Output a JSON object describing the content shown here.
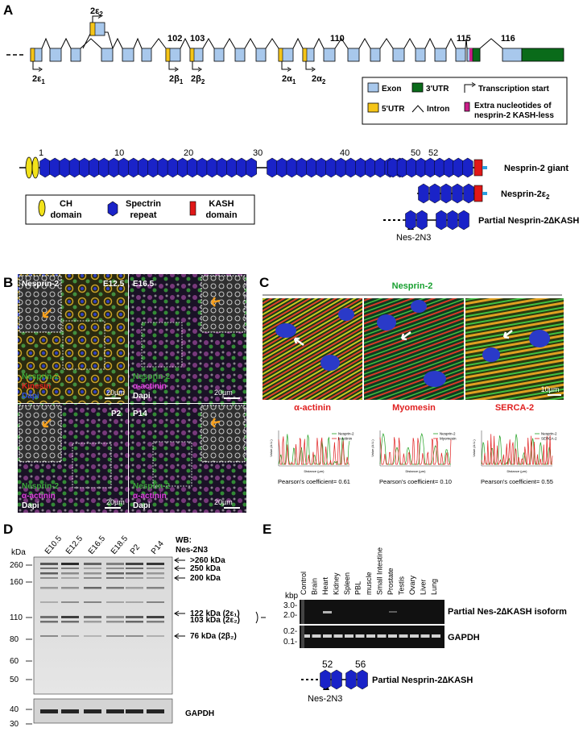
{
  "panels": {
    "A": "A",
    "B": "B",
    "C": "C",
    "D": "D",
    "E": "E"
  },
  "gene": {
    "exon_numbers": [
      "102",
      "103",
      "110",
      "115",
      "116"
    ],
    "start_labels": {
      "e1": {
        "base": "2ε",
        "sub": "1"
      },
      "e2": {
        "base": "2ε",
        "sub": "2"
      },
      "b1": {
        "base": "2β",
        "sub": "1"
      },
      "b2": {
        "base": "2β",
        "sub": "2"
      },
      "a1": {
        "base": "2α",
        "sub": "1"
      },
      "a2": {
        "base": "2α",
        "sub": "2"
      }
    },
    "legend": {
      "exon": "Exon",
      "utr3": "3'UTR",
      "tss": "Transcription start",
      "utr5": "5'UTR",
      "intron": "Intron",
      "extra_line1": "Extra nucleotides of",
      "extra_line2": "nesprin-2 KASH-less"
    }
  },
  "protein": {
    "repeat_numbers": [
      "1",
      "10",
      "20",
      "30",
      "40",
      "50",
      "52"
    ],
    "giant": "Nesprin-2 giant",
    "e2": {
      "base": "Nesprin-2ε",
      "sub": "2"
    },
    "partial": "Partial Nesprin-2∆KASH",
    "antibody": "Nes-2N3",
    "legend": {
      "ch_line1": "CH",
      "ch_line2": "domain",
      "spectrin_line1": "Spectrin",
      "spectrin_line2": "repeat",
      "kash_line1": "KASH",
      "kash_line2": "domain"
    }
  },
  "panelB": {
    "tiles": [
      {
        "stage": "E12.5",
        "inset": "Nesprin-2",
        "l1": "Nesprin-2",
        "l2": "Kinesin",
        "l3": "Dapi",
        "scale": "20µm"
      },
      {
        "stage": "E16.5",
        "inset": "",
        "l1": "Nesprin-2",
        "l2": "α-actinin",
        "l3": "Dapi",
        "scale": "20µm"
      },
      {
        "stage": "P2",
        "inset": "",
        "l1": "Nesprin-2",
        "l2": "α-actinin",
        "l3": "Dapi",
        "scale": "20µm"
      },
      {
        "stage": "P14",
        "inset": "",
        "l1": "Nesprin-2",
        "l2": "α-actinin",
        "l3": "Dapi",
        "scale": "20µm"
      }
    ]
  },
  "panelC": {
    "header": "Nesprin-2",
    "images": [
      {
        "label": "α-actinin"
      },
      {
        "label": "Myomesin"
      },
      {
        "label": "SERCA-2"
      }
    ],
    "scale": "10µm",
    "plots": [
      {
        "legend": [
          "Nesprin-2",
          "α-actinin"
        ],
        "pearson": "Pearson's coefficient= 0.61"
      },
      {
        "legend": [
          "Nesprin-2",
          "Myomesin"
        ],
        "pearson": "Pearson's coefficient= 0.10"
      },
      {
        "legend": [
          "Nesprin-2",
          "SERCA-2"
        ],
        "pearson": "Pearson's coefficient= 0.55"
      }
    ],
    "ylabel": "Value (A.U.)",
    "xlabel": "Distance (µm)"
  },
  "panelD": {
    "kda": "kDa",
    "lanes": [
      "E10.5",
      "E12.5",
      "E16.5",
      "E18.5",
      "P2",
      "P14"
    ],
    "wb_line1": "WB:",
    "wb_line2": "Nes-2N3",
    "markers": [
      "260",
      "160",
      "110",
      "80",
      "60",
      "50",
      "40",
      "30"
    ],
    "gapdh_markers": [
      "40",
      "30"
    ],
    "band_labels": [
      ">260 kDa",
      "250 kDa",
      "200 kDa",
      "122 kDa (2ε₁)",
      "103 kDa (2ε₂)",
      "76 kDa (2β₂)"
    ],
    "gapdh": "GAPDH"
  },
  "panelE": {
    "kbp": "kbp",
    "lanes": [
      "Control",
      "Brain",
      "Heart",
      "Kidney",
      "Spleen",
      "PBL",
      "muscle",
      "Small Intestine",
      "Prostate",
      "Testis",
      "Ovary",
      "Liver",
      "Lung"
    ],
    "markers_top": [
      "3.0-",
      "2.0-"
    ],
    "markers_bottom": [
      "0.2-",
      "0.1-"
    ],
    "label_top": "Partial Nes-2∆KASH isoform",
    "label_bottom": "GAPDH",
    "diagram_start": "52",
    "diagram_end": "56",
    "diagram_label": "Partial Nesprin-2∆KASH",
    "antibody": "Nes-2N3"
  },
  "colors": {
    "exon": "#a8c8ec",
    "utr5": "#f5c518",
    "utr3": "#0a6b1a",
    "extra": "#cc1f8a",
    "spectrin": "#1a23c8",
    "ch": "#f2e21a",
    "kash": "#e01818",
    "tail": "#2aa0e0"
  }
}
